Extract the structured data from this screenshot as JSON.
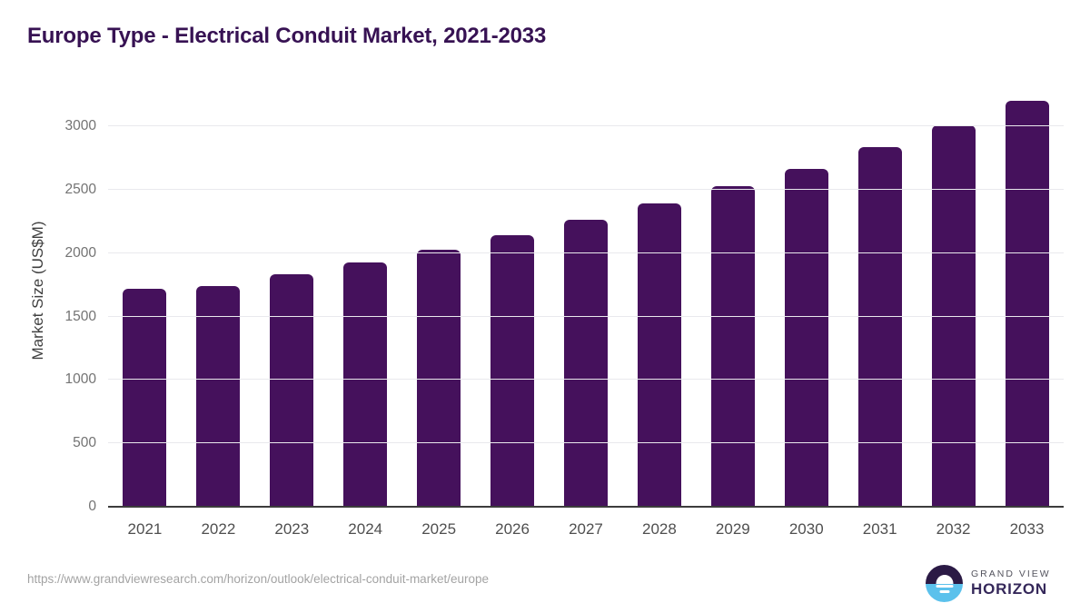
{
  "page": {
    "title": "Europe Type - Electrical Conduit Market, 2021-2033"
  },
  "chart_data": {
    "type": "bar",
    "title": "Europe Type - Electrical Conduit Market, 2021-2033",
    "categories": [
      "2021",
      "2022",
      "2023",
      "2024",
      "2025",
      "2026",
      "2027",
      "2028",
      "2029",
      "2030",
      "2031",
      "2032",
      "2033"
    ],
    "values": [
      1720,
      1740,
      1830,
      1925,
      2025,
      2140,
      2260,
      2395,
      2530,
      2665,
      2835,
      3010,
      3200
    ],
    "xlabel": "",
    "ylabel": "Market Size (US$M)",
    "ylim": [
      0,
      3308
    ],
    "yticks": [
      0,
      500,
      1000,
      1500,
      2000,
      2500,
      3000
    ],
    "grid": true,
    "legend_position": "none",
    "bar_color": "#45115c"
  },
  "footer": {
    "source_url": "https://www.grandviewresearch.com/horizon/outlook/electrical-conduit-market/europe",
    "brand": {
      "top": "GRAND VIEW",
      "bottom": "HORIZON"
    }
  },
  "colors": {
    "bar": "#45115c",
    "title": "#371253",
    "gridline": "#e9e9ed",
    "axis_line": "#3c3c3c",
    "y_tick_label": "#737373",
    "x_tick_label": "#4f4f4f",
    "axis_label": "#3f3f3f",
    "url_text": "#a3a3a3",
    "logo_dark_half": "#2b1a45",
    "logo_blue_half": "#5bc1ec",
    "logo_text_top": "#54545e",
    "logo_text_bottom": "#35285a"
  }
}
